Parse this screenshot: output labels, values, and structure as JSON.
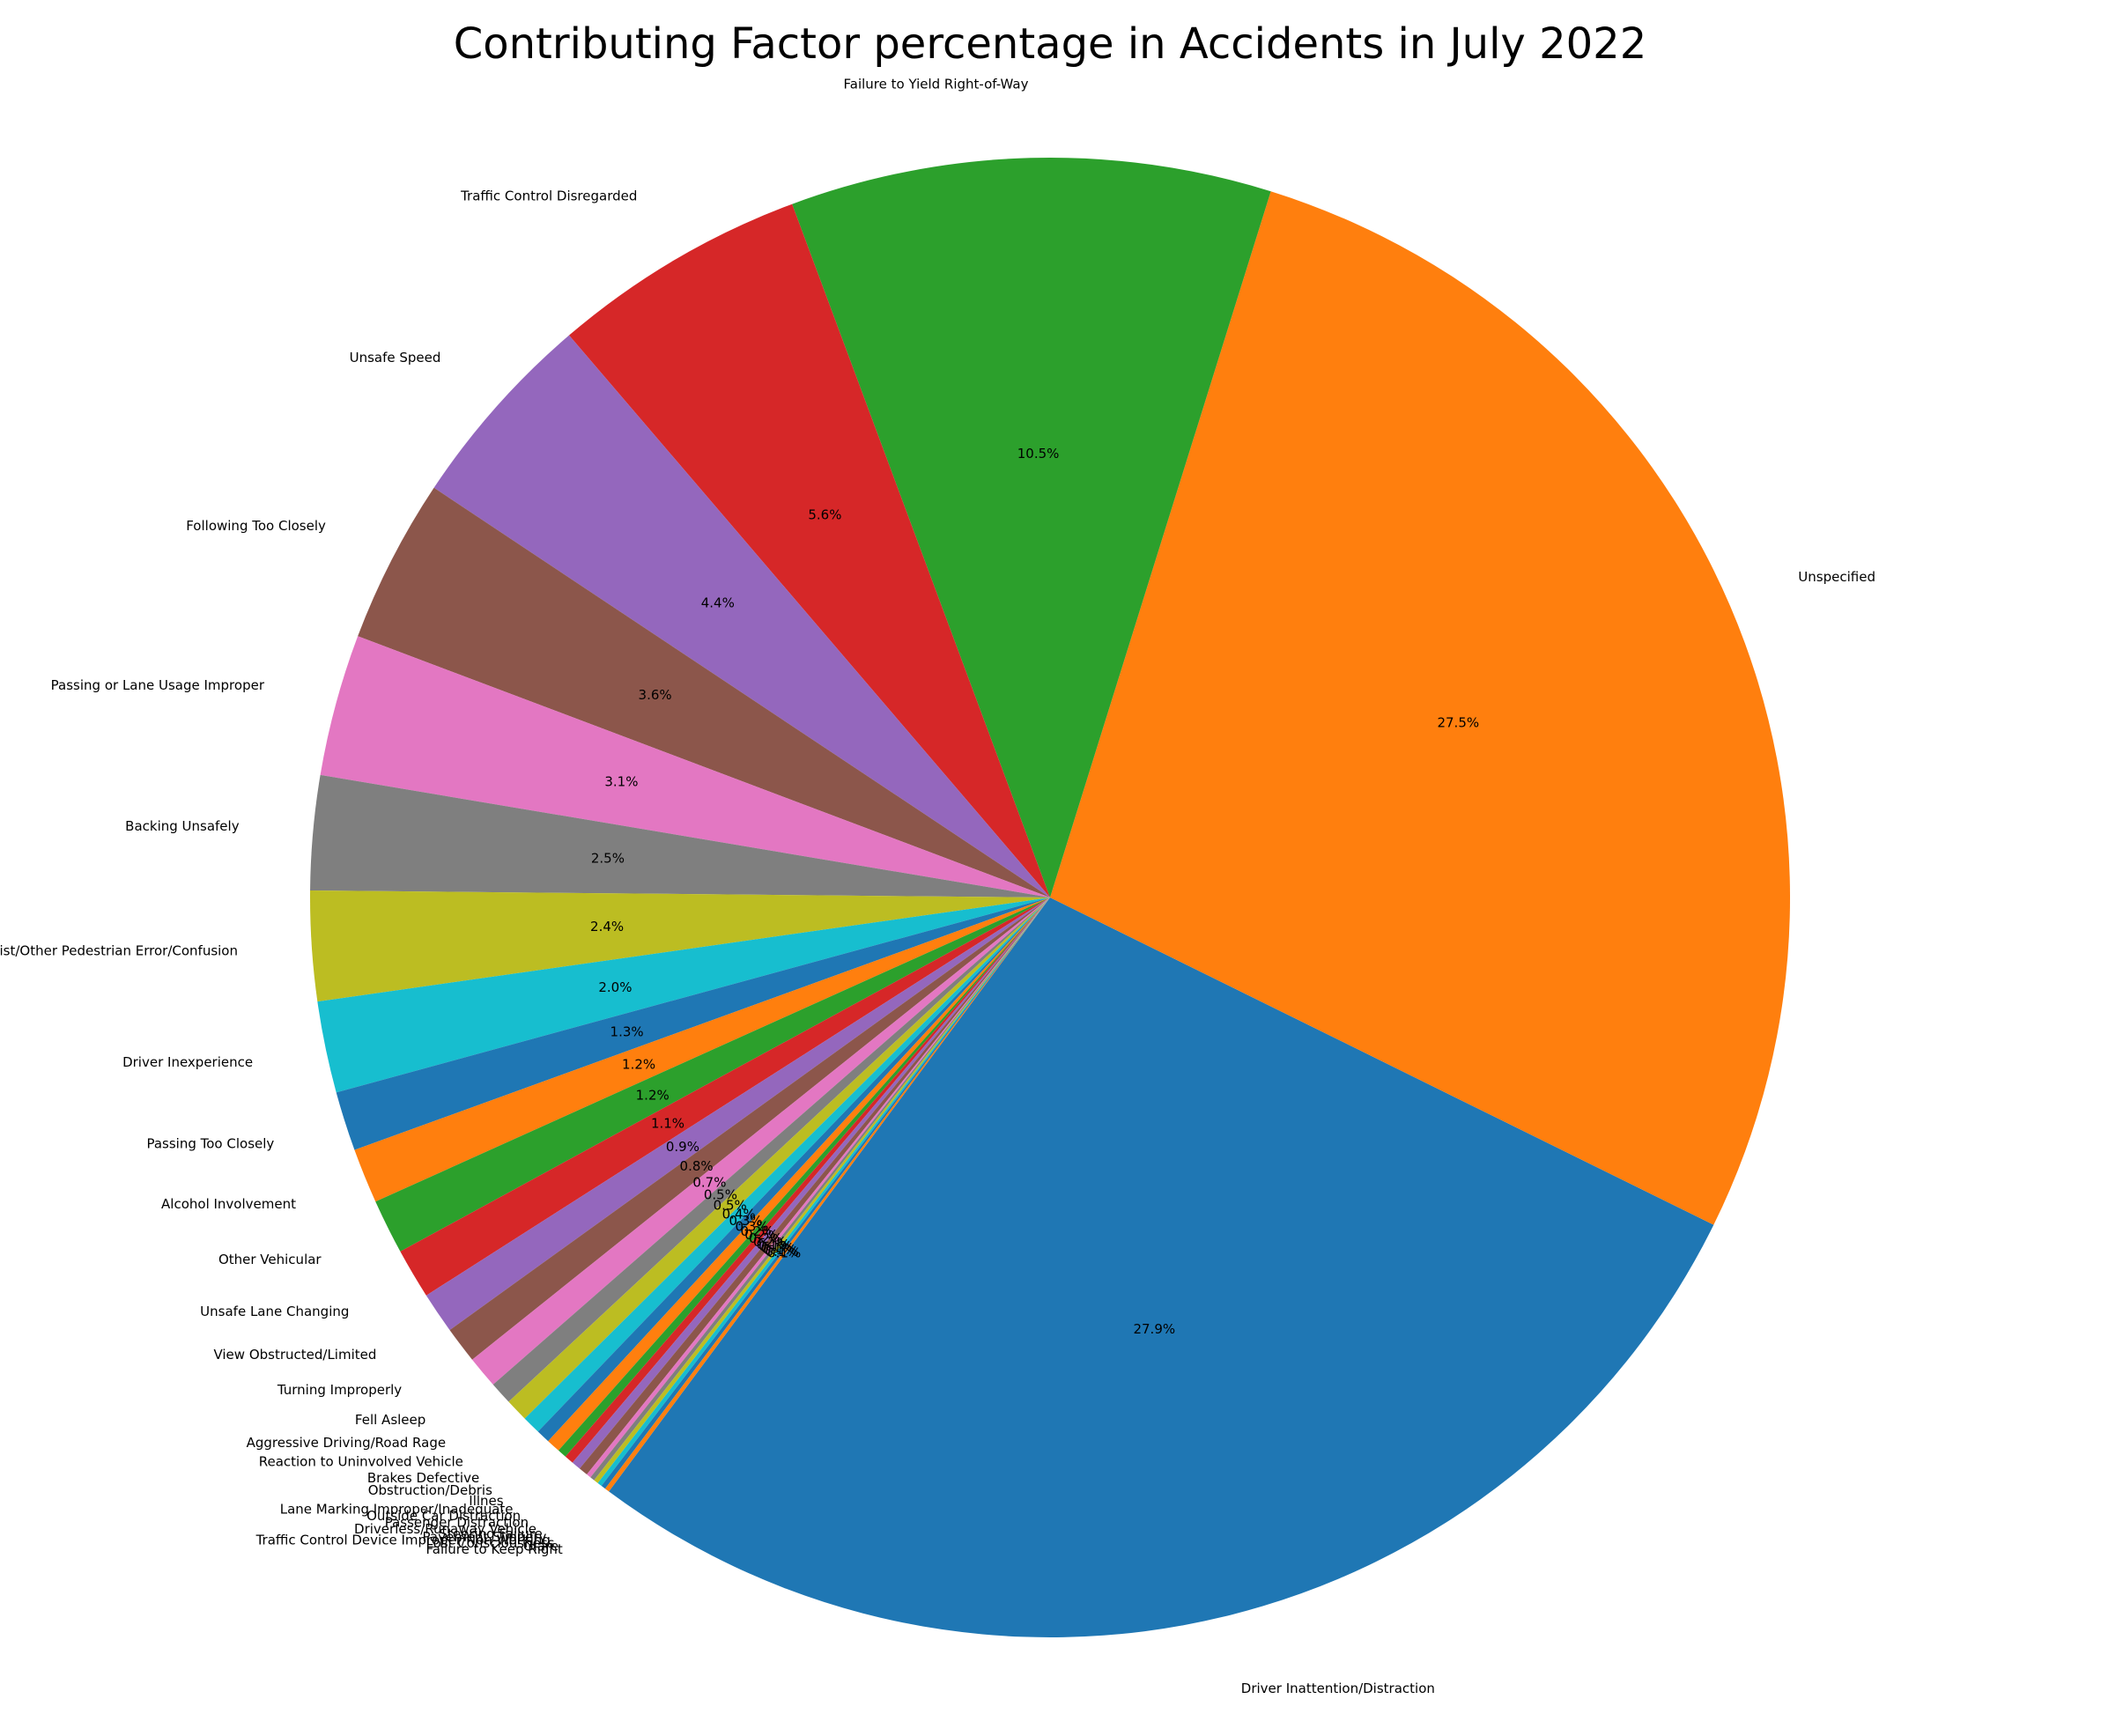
{
  "chart_data": {
    "type": "pie",
    "title": "Contributing Factor percentage in Accidents in July 2022",
    "start_angle_deg": 233.4,
    "direction": "counterclockwise",
    "slices": [
      {
        "label": "Driver Inattention/Distraction",
        "value": 27.9,
        "pct_label": "27.9%",
        "color": "#1f77b4"
      },
      {
        "label": "Unspecified",
        "value": 27.5,
        "pct_label": "27.5%",
        "color": "#ff7f0e"
      },
      {
        "label": "Failure to Yield Right-of-Way",
        "value": 10.5,
        "pct_label": "10.5%",
        "color": "#2ca02c"
      },
      {
        "label": "Traffic Control Disregarded",
        "value": 5.6,
        "pct_label": "5.6%",
        "color": "#d62728"
      },
      {
        "label": "Unsafe Speed",
        "value": 4.4,
        "pct_label": "4.4%",
        "color": "#9467bd"
      },
      {
        "label": "Following Too Closely",
        "value": 3.6,
        "pct_label": "3.6%",
        "color": "#8c564b"
      },
      {
        "label": "Passing or Lane Usage Improper",
        "value": 3.1,
        "pct_label": "3.1%",
        "color": "#e377c2"
      },
      {
        "label": "Backing Unsafely",
        "value": 2.5,
        "pct_label": "2.5%",
        "color": "#7f7f7f"
      },
      {
        "label": "Pedestrian/Bicyclist/Other Pedestrian Error/Confusion",
        "value": 2.4,
        "pct_label": "2.4%",
        "color": "#bcbd22"
      },
      {
        "label": "Driver Inexperience",
        "value": 2.0,
        "pct_label": "2.0%",
        "color": "#17becf"
      },
      {
        "label": "Passing Too Closely",
        "value": 1.3,
        "pct_label": "1.3%",
        "color": "#1f77b4"
      },
      {
        "label": "Alcohol Involvement",
        "value": 1.2,
        "pct_label": "1.2%",
        "color": "#ff7f0e"
      },
      {
        "label": "Other Vehicular",
        "value": 1.2,
        "pct_label": "1.2%",
        "color": "#2ca02c"
      },
      {
        "label": "Unsafe Lane Changing",
        "value": 1.1,
        "pct_label": "1.1%",
        "color": "#d62728"
      },
      {
        "label": "View Obstructed/Limited",
        "value": 0.9,
        "pct_label": "0.9%",
        "color": "#9467bd"
      },
      {
        "label": "Turning Improperly",
        "value": 0.8,
        "pct_label": "0.8%",
        "color": "#8c564b"
      },
      {
        "label": "Fell Asleep",
        "value": 0.7,
        "pct_label": "0.7%",
        "color": "#e377c2"
      },
      {
        "label": "Aggressive Driving/Road Rage",
        "value": 0.5,
        "pct_label": "0.5%",
        "color": "#7f7f7f"
      },
      {
        "label": "Reaction to Uninvolved Vehicle",
        "value": 0.5,
        "pct_label": "0.5%",
        "color": "#bcbd22"
      },
      {
        "label": "Brakes Defective",
        "value": 0.4,
        "pct_label": "0.4%",
        "color": "#17becf"
      },
      {
        "label": "Obstruction/Debris",
        "value": 0.3,
        "pct_label": "0.3%",
        "color": "#1f77b4"
      },
      {
        "label": "Illnes",
        "value": 0.3,
        "pct_label": "0.3%",
        "color": "#ff7f0e"
      },
      {
        "label": "Lane Marking Improper/Inadequate",
        "value": 0.2,
        "pct_label": "0.2%",
        "color": "#2ca02c"
      },
      {
        "label": "Outside Car Distraction",
        "value": 0.2,
        "pct_label": "0.2%",
        "color": "#d62728"
      },
      {
        "label": "Passenger Distraction",
        "value": 0.2,
        "pct_label": "0.2%",
        "color": "#9467bd"
      },
      {
        "label": "Driverless/Runaway Vehicle",
        "value": 0.2,
        "pct_label": "0.2%",
        "color": "#8c564b"
      },
      {
        "label": "Steering Failure",
        "value": 0.1,
        "pct_label": "0.1%",
        "color": "#e377c2"
      },
      {
        "label": "Pavement Slippery",
        "value": 0.1,
        "pct_label": "0.1%",
        "color": "#7f7f7f"
      },
      {
        "label": "Traffic Control Device Improper/Non-Working",
        "value": 0.1,
        "pct_label": "0.1%",
        "color": "#bcbd22"
      },
      {
        "label": "Lost Consciousness",
        "value": 0.1,
        "pct_label": "0.1%",
        "color": "#17becf"
      },
      {
        "label": "Glare",
        "value": 0.1,
        "pct_label": "0.1%",
        "color": "#1f77b4"
      },
      {
        "label": "Failure to Keep Right",
        "value": 0.1,
        "pct_label": "0.1%",
        "color": "#ff7f0e"
      }
    ]
  }
}
